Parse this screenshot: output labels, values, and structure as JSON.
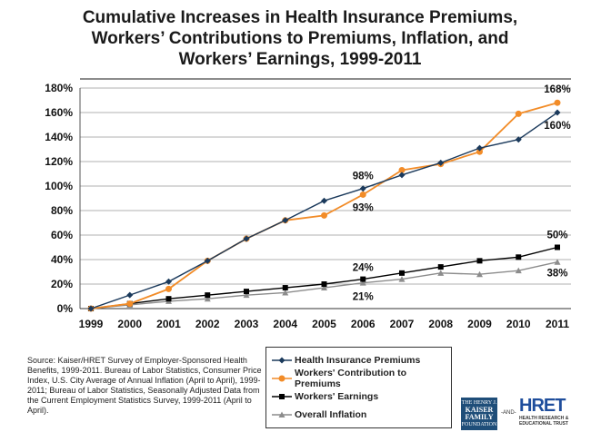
{
  "title": {
    "line1": "Cumulative Increases in Health Insurance Premiums,",
    "line2": "Workers’ Contributions to Premiums, Inflation, and",
    "line3": "Workers’ Earnings, 1999-2011"
  },
  "source_note": "Source:  Kaiser/HRET Survey of Employer-Sponsored Health Benefits, 1999-2011.  Bureau of Labor Statistics, Consumer Price Index, U.S. City Average of Annual Inflation (April to April), 1999-2011; Bureau of Labor Statistics, Seasonally Adjusted Data from the Current Employment Statistics Survey, 1999-2011 (April to April).",
  "logos": {
    "kff_line1": "THE HENRY J.",
    "kff_line2": "KAISER",
    "kff_line3": "FAMILY",
    "kff_line4": "FOUNDATION",
    "and": "-AND-",
    "hret_word": "HRET",
    "hret_sub1": "HEALTH RESEARCH &",
    "hret_sub2": "EDUCATIONAL TRUST"
  },
  "chart_data": {
    "type": "line",
    "categories": [
      "1999",
      "2000",
      "2001",
      "2002",
      "2003",
      "2004",
      "2005",
      "2006",
      "2007",
      "2008",
      "2009",
      "2010",
      "2011"
    ],
    "yticks": [
      "0%",
      "20%",
      "40%",
      "60%",
      "80%",
      "100%",
      "120%",
      "140%",
      "160%",
      "180%"
    ],
    "ylim": [
      0,
      180
    ],
    "grid": true,
    "legend_position": "bottom",
    "series": [
      {
        "name": "Health Insurance Premiums",
        "color": "#1b3a5c",
        "marker": "diamond",
        "values": [
          0,
          11,
          22,
          39,
          57,
          72,
          88,
          98,
          109,
          119,
          131,
          138,
          160
        ]
      },
      {
        "name": "Workers' Contribution to Premiums",
        "color": "#f28c28",
        "marker": "circle",
        "values": [
          0,
          4,
          16,
          39,
          57,
          72,
          76,
          93,
          113,
          118,
          128,
          159,
          168
        ]
      },
      {
        "name": "Workers' Earnings",
        "color": "#000000",
        "marker": "square",
        "values": [
          0,
          4,
          8,
          11,
          14,
          17,
          20,
          24,
          29,
          34,
          39,
          42,
          50
        ]
      },
      {
        "name": "Overall Inflation",
        "color": "#8c8c8c",
        "marker": "triangle",
        "values": [
          0,
          3,
          6,
          8,
          11,
          13,
          17,
          21,
          24,
          29,
          28,
          31,
          38
        ]
      }
    ],
    "annotations": [
      {
        "series": 0,
        "index": 7,
        "text": "98%"
      },
      {
        "series": 1,
        "index": 7,
        "text": "93%"
      },
      {
        "series": 2,
        "index": 7,
        "text": "24%"
      },
      {
        "series": 3,
        "index": 7,
        "text": "21%"
      },
      {
        "series": 1,
        "index": 12,
        "text": "168%"
      },
      {
        "series": 0,
        "index": 12,
        "text": "160%"
      },
      {
        "series": 2,
        "index": 12,
        "text": "50%"
      },
      {
        "series": 3,
        "index": 12,
        "text": "38%"
      }
    ]
  }
}
